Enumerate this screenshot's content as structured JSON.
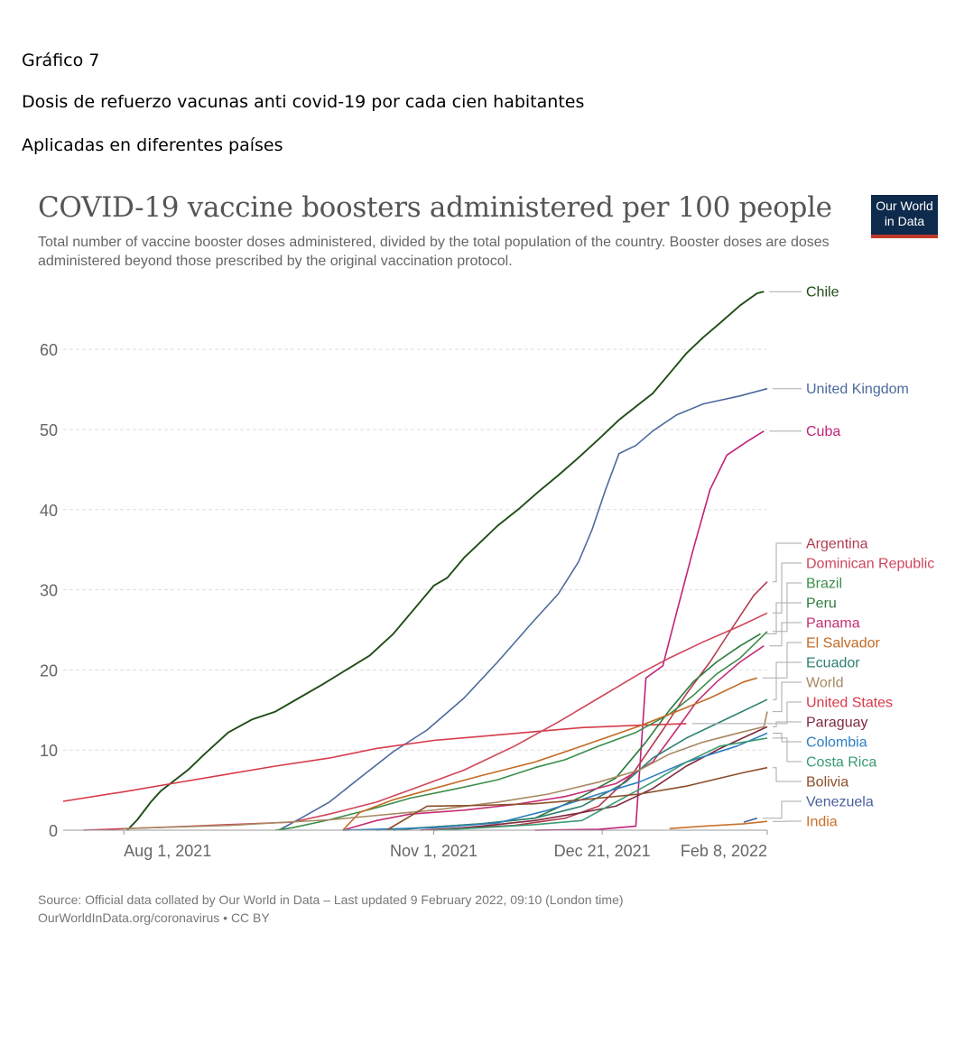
{
  "document": {
    "heading": "Gráfico 7",
    "subtitle_line1": "Dosis de refuerzo vacunas anti covid-19 por cada cien habitantes",
    "subtitle_line2": "Aplicadas en diferentes países"
  },
  "logo": {
    "line1": "Our World",
    "line2": "in Data"
  },
  "source": {
    "line1": "Source: Official data collated by Our World in Data – Last updated 9 February 2022, 09:10 (London time)",
    "line2": "OurWorldInData.org/coronavirus • CC BY"
  },
  "chart_data": {
    "type": "line",
    "title": "COVID-19 vaccine boosters administered per 100 people",
    "subtitle": "Total number of vaccine booster doses administered, divided by the total population of the country. Booster doses are doses administered beyond those prescribed by the original vaccination protocol.",
    "x_axis": {
      "type": "date",
      "range": [
        "2021-07-14",
        "2022-02-08"
      ],
      "ticks": [
        {
          "date": "2021-08-01",
          "label": "Aug 1, 2021"
        },
        {
          "date": "2021-11-01",
          "label": "Nov 1, 2021"
        },
        {
          "date": "2021-12-21",
          "label": "Dec 21, 2021"
        },
        {
          "date": "2022-02-08",
          "label": "Feb 8, 2022"
        }
      ]
    },
    "y_axis": {
      "range": [
        0,
        67
      ],
      "ticks": [
        0,
        10,
        20,
        30,
        40,
        50,
        60
      ],
      "grid": true
    },
    "legend": "right, labels at line ends",
    "series": [
      {
        "name": "Chile",
        "color": "#1f4d16",
        "points": [
          [
            "2021-08-02",
            0
          ],
          [
            "2021-08-05",
            1.3
          ],
          [
            "2021-08-09",
            3.5
          ],
          [
            "2021-08-12",
            4.9
          ],
          [
            "2021-08-16",
            6.2
          ],
          [
            "2021-08-20",
            7.5
          ],
          [
            "2021-08-25",
            9.5
          ],
          [
            "2021-09-01",
            12.2
          ],
          [
            "2021-09-08",
            13.8
          ],
          [
            "2021-09-15",
            14.8
          ],
          [
            "2021-09-22",
            16.5
          ],
          [
            "2021-09-29",
            18.2
          ],
          [
            "2021-10-06",
            20
          ],
          [
            "2021-10-13",
            21.8
          ],
          [
            "2021-10-20",
            24.5
          ],
          [
            "2021-10-27",
            28
          ],
          [
            "2021-11-01",
            30.5
          ],
          [
            "2021-11-05",
            31.5
          ],
          [
            "2021-11-10",
            34
          ],
          [
            "2021-11-15",
            36
          ],
          [
            "2021-11-20",
            38
          ],
          [
            "2021-11-26",
            40
          ],
          [
            "2021-12-02",
            42.2
          ],
          [
            "2021-12-08",
            44.3
          ],
          [
            "2021-12-14",
            46.5
          ],
          [
            "2021-12-20",
            48.8
          ],
          [
            "2021-12-26",
            51.2
          ],
          [
            "2022-01-01",
            53.2
          ],
          [
            "2022-01-05",
            54.5
          ],
          [
            "2022-01-10",
            57
          ],
          [
            "2022-01-15",
            59.5
          ],
          [
            "2022-01-20",
            61.5
          ],
          [
            "2022-01-25",
            63.3
          ],
          [
            "2022-01-31",
            65.5
          ],
          [
            "2022-02-05",
            67
          ],
          [
            "2022-02-07",
            67.2
          ]
        ]
      },
      {
        "name": "United Kingdom",
        "color": "#4c6a9c",
        "points": [
          [
            "2021-09-16",
            0
          ],
          [
            "2021-09-23",
            1.6
          ],
          [
            "2021-10-01",
            3.5
          ],
          [
            "2021-10-10",
            6.5
          ],
          [
            "2021-10-20",
            9.8
          ],
          [
            "2021-10-30",
            12.5
          ],
          [
            "2021-11-10",
            16.5
          ],
          [
            "2021-11-20",
            21
          ],
          [
            "2021-11-30",
            25.8
          ],
          [
            "2021-12-08",
            29.5
          ],
          [
            "2021-12-14",
            33.5
          ],
          [
            "2021-12-18",
            37.5
          ],
          [
            "2021-12-22",
            42.5
          ],
          [
            "2021-12-26",
            47
          ],
          [
            "2021-12-31",
            48
          ],
          [
            "2022-01-05",
            49.8
          ],
          [
            "2022-01-12",
            51.8
          ],
          [
            "2022-01-20",
            53.2
          ],
          [
            "2022-01-31",
            54.2
          ],
          [
            "2022-02-08",
            55.1
          ]
        ]
      },
      {
        "name": "Cuba",
        "color": "#c1237a",
        "points": [
          [
            "2021-12-01",
            0
          ],
          [
            "2021-12-20",
            0.1
          ],
          [
            "2021-12-31",
            0.5
          ],
          [
            "2022-01-03",
            19
          ],
          [
            "2022-01-08",
            20.5
          ],
          [
            "2022-01-12",
            27
          ],
          [
            "2022-01-17",
            35
          ],
          [
            "2022-01-22",
            42.5
          ],
          [
            "2022-01-27",
            46.8
          ],
          [
            "2022-02-02",
            48.5
          ],
          [
            "2022-02-07",
            49.8
          ]
        ]
      },
      {
        "name": "Argentina",
        "color": "#b13b4f",
        "points": [
          [
            "2021-10-28",
            0
          ],
          [
            "2021-11-10",
            0.3
          ],
          [
            "2021-11-25",
            0.6
          ],
          [
            "2021-12-10",
            1.5
          ],
          [
            "2021-12-20",
            3
          ],
          [
            "2021-12-30",
            7
          ],
          [
            "2022-01-08",
            12.5
          ],
          [
            "2022-01-15",
            17
          ],
          [
            "2022-01-22",
            21
          ],
          [
            "2022-01-29",
            25.5
          ],
          [
            "2022-02-04",
            29.3
          ],
          [
            "2022-02-08",
            31
          ]
        ]
      },
      {
        "name": "United States",
        "color": "#d73a4a",
        "points": [
          [
            "2021-07-14",
            3.6
          ],
          [
            "2021-08-01",
            4.8
          ],
          [
            "2021-08-15",
            5.8
          ],
          [
            "2021-09-01",
            7
          ],
          [
            "2021-09-15",
            8
          ],
          [
            "2021-10-01",
            9
          ],
          [
            "2021-10-15",
            10.2
          ],
          [
            "2021-11-01",
            11.2
          ],
          [
            "2021-11-15",
            11.7
          ],
          [
            "2021-12-01",
            12.3
          ],
          [
            "2021-12-15",
            12.8
          ],
          [
            "2022-01-01",
            13.1
          ],
          [
            "2022-01-15",
            13.3
          ]
        ]
      },
      {
        "name": "Brazil",
        "color": "#3b8d4a",
        "points": [
          [
            "2021-09-15",
            0
          ],
          [
            "2021-09-20",
            0.3
          ],
          [
            "2021-10-01",
            1.3
          ],
          [
            "2021-10-15",
            2.8
          ],
          [
            "2021-10-25",
            4
          ],
          [
            "2021-11-08",
            5.2
          ],
          [
            "2021-11-20",
            6.3
          ],
          [
            "2021-12-01",
            7.8
          ],
          [
            "2021-12-10",
            8.8
          ],
          [
            "2021-12-20",
            10.5
          ],
          [
            "2021-12-31",
            12.2
          ],
          [
            "2022-01-10",
            14.5
          ],
          [
            "2022-01-17",
            16.8
          ],
          [
            "2022-01-24",
            19.5
          ],
          [
            "2022-01-31",
            21.5
          ],
          [
            "2022-02-08",
            24.8
          ]
        ]
      },
      {
        "name": "Peru",
        "color": "#2c7a3d",
        "points": [
          [
            "2021-10-20",
            0
          ],
          [
            "2021-11-01",
            0.4
          ],
          [
            "2021-11-15",
            0.8
          ],
          [
            "2021-12-01",
            1.5
          ],
          [
            "2021-12-15",
            4.2
          ],
          [
            "2021-12-25",
            6.5
          ],
          [
            "2022-01-03",
            11
          ],
          [
            "2022-01-10",
            15
          ],
          [
            "2022-01-17",
            18.5
          ],
          [
            "2022-01-24",
            21
          ],
          [
            "2022-01-31",
            23
          ],
          [
            "2022-02-06",
            24.5
          ]
        ]
      },
      {
        "name": "Panama",
        "color": "#c42e74",
        "points": [
          [
            "2021-10-05",
            0
          ],
          [
            "2021-10-15",
            1.2
          ],
          [
            "2021-10-25",
            2
          ],
          [
            "2021-11-10",
            2.5
          ],
          [
            "2021-11-25",
            3.2
          ],
          [
            "2021-12-10",
            4.2
          ],
          [
            "2021-12-25",
            5.8
          ],
          [
            "2022-01-05",
            8.5
          ],
          [
            "2022-01-12",
            12.5
          ],
          [
            "2022-01-18",
            16
          ],
          [
            "2022-01-24",
            18.5
          ],
          [
            "2022-01-31",
            21
          ],
          [
            "2022-02-07",
            23
          ]
        ]
      },
      {
        "name": "Dominican Republic",
        "color": "#d0455a",
        "points": [
          [
            "2021-07-20",
            0
          ],
          [
            "2021-08-15",
            0.4
          ],
          [
            "2021-09-01",
            0.7
          ],
          [
            "2021-09-20",
            1
          ],
          [
            "2021-10-01",
            2
          ],
          [
            "2021-10-15",
            3.5
          ],
          [
            "2021-10-28",
            5.5
          ],
          [
            "2021-11-10",
            7.5
          ],
          [
            "2021-11-25",
            10.5
          ],
          [
            "2021-12-08",
            13.5
          ],
          [
            "2021-12-20",
            16.5
          ],
          [
            "2022-01-01",
            19.5
          ],
          [
            "2022-01-10",
            21.5
          ],
          [
            "2022-01-20",
            23.5
          ],
          [
            "2022-01-31",
            25.5
          ],
          [
            "2022-02-08",
            27.1
          ]
        ]
      },
      {
        "name": "El Salvador",
        "color": "#c26a24",
        "points": [
          [
            "2021-10-05",
            0
          ],
          [
            "2021-10-10",
            2.2
          ],
          [
            "2021-10-20",
            3.8
          ],
          [
            "2021-11-01",
            5.2
          ],
          [
            "2021-11-15",
            6.8
          ],
          [
            "2021-12-01",
            8.5
          ],
          [
            "2021-12-15",
            10.5
          ],
          [
            "2022-01-01",
            13
          ],
          [
            "2022-01-12",
            14.8
          ],
          [
            "2022-01-22",
            16.5
          ],
          [
            "2022-02-01",
            18.5
          ],
          [
            "2022-02-05",
            19
          ]
        ]
      },
      {
        "name": "Ecuador",
        "color": "#2e8070",
        "points": [
          [
            "2021-10-15",
            0
          ],
          [
            "2021-11-01",
            0.4
          ],
          [
            "2021-11-15",
            0.8
          ],
          [
            "2021-12-01",
            1.5
          ],
          [
            "2021-12-15",
            3
          ],
          [
            "2021-12-28",
            6
          ],
          [
            "2022-01-05",
            9
          ],
          [
            "2022-01-15",
            11.5
          ],
          [
            "2022-01-25",
            13.5
          ],
          [
            "2022-02-08",
            16.3
          ]
        ]
      },
      {
        "name": "World",
        "color": "#a88861",
        "points": [
          [
            "2021-08-01",
            0.2
          ],
          [
            "2021-09-01",
            0.6
          ],
          [
            "2021-10-01",
            1.3
          ],
          [
            "2021-11-01",
            2.5
          ],
          [
            "2021-11-20",
            3.5
          ],
          [
            "2021-12-05",
            4.5
          ],
          [
            "2021-12-20",
            6
          ],
          [
            "2022-01-01",
            7.5
          ],
          [
            "2022-01-10",
            9.5
          ],
          [
            "2022-01-20",
            11
          ],
          [
            "2022-02-01",
            12.3
          ],
          [
            "2022-02-07",
            12.9
          ],
          [
            "2022-02-08",
            14.8
          ]
        ]
      },
      {
        "name": "Paraguay",
        "color": "#7d2a3c",
        "points": [
          [
            "2021-11-01",
            0
          ],
          [
            "2021-11-15",
            0.5
          ],
          [
            "2021-12-01",
            1.2
          ],
          [
            "2021-12-15",
            2.2
          ],
          [
            "2021-12-25",
            3
          ],
          [
            "2022-01-05",
            5.2
          ],
          [
            "2022-01-15",
            8
          ],
          [
            "2022-01-25",
            10.2
          ],
          [
            "2022-02-08",
            12.9
          ]
        ]
      },
      {
        "name": "Colombia",
        "color": "#2f7fc0",
        "points": [
          [
            "2021-10-05",
            0
          ],
          [
            "2021-11-01",
            0.3
          ],
          [
            "2021-11-20",
            0.9
          ],
          [
            "2021-12-05",
            2.5
          ],
          [
            "2021-12-20",
            4.5
          ],
          [
            "2022-01-01",
            6
          ],
          [
            "2022-01-15",
            8.5
          ],
          [
            "2022-01-30",
            10.5
          ],
          [
            "2022-02-08",
            12.1
          ]
        ]
      },
      {
        "name": "Costa Rica",
        "color": "#3a9a73",
        "points": [
          [
            "2021-11-01",
            0
          ],
          [
            "2021-11-15",
            0.3
          ],
          [
            "2021-12-01",
            0.7
          ],
          [
            "2021-12-15",
            1.2
          ],
          [
            "2021-12-25",
            3.5
          ],
          [
            "2022-01-05",
            6
          ],
          [
            "2022-01-15",
            8.5
          ],
          [
            "2022-01-25",
            10.5
          ],
          [
            "2022-02-08",
            11.5
          ]
        ]
      },
      {
        "name": "Bolivia",
        "color": "#8c4e2a",
        "points": [
          [
            "2021-10-18",
            0
          ],
          [
            "2021-10-30",
            3
          ],
          [
            "2021-11-15",
            3.1
          ],
          [
            "2021-12-01",
            3.3
          ],
          [
            "2021-12-15",
            3.8
          ],
          [
            "2022-01-01",
            4.5
          ],
          [
            "2022-01-15",
            5.5
          ],
          [
            "2022-02-01",
            7.2
          ],
          [
            "2022-02-08",
            7.8
          ]
        ]
      },
      {
        "name": "Venezuela",
        "color": "#48609c",
        "points": [
          [
            "2022-02-01",
            1
          ],
          [
            "2022-02-05",
            1.5
          ]
        ]
      },
      {
        "name": "India",
        "color": "#c8702a",
        "points": [
          [
            "2022-01-10",
            0.2
          ],
          [
            "2022-01-20",
            0.5
          ],
          [
            "2022-02-01",
            0.8
          ],
          [
            "2022-02-08",
            1.1
          ]
        ]
      }
    ]
  }
}
